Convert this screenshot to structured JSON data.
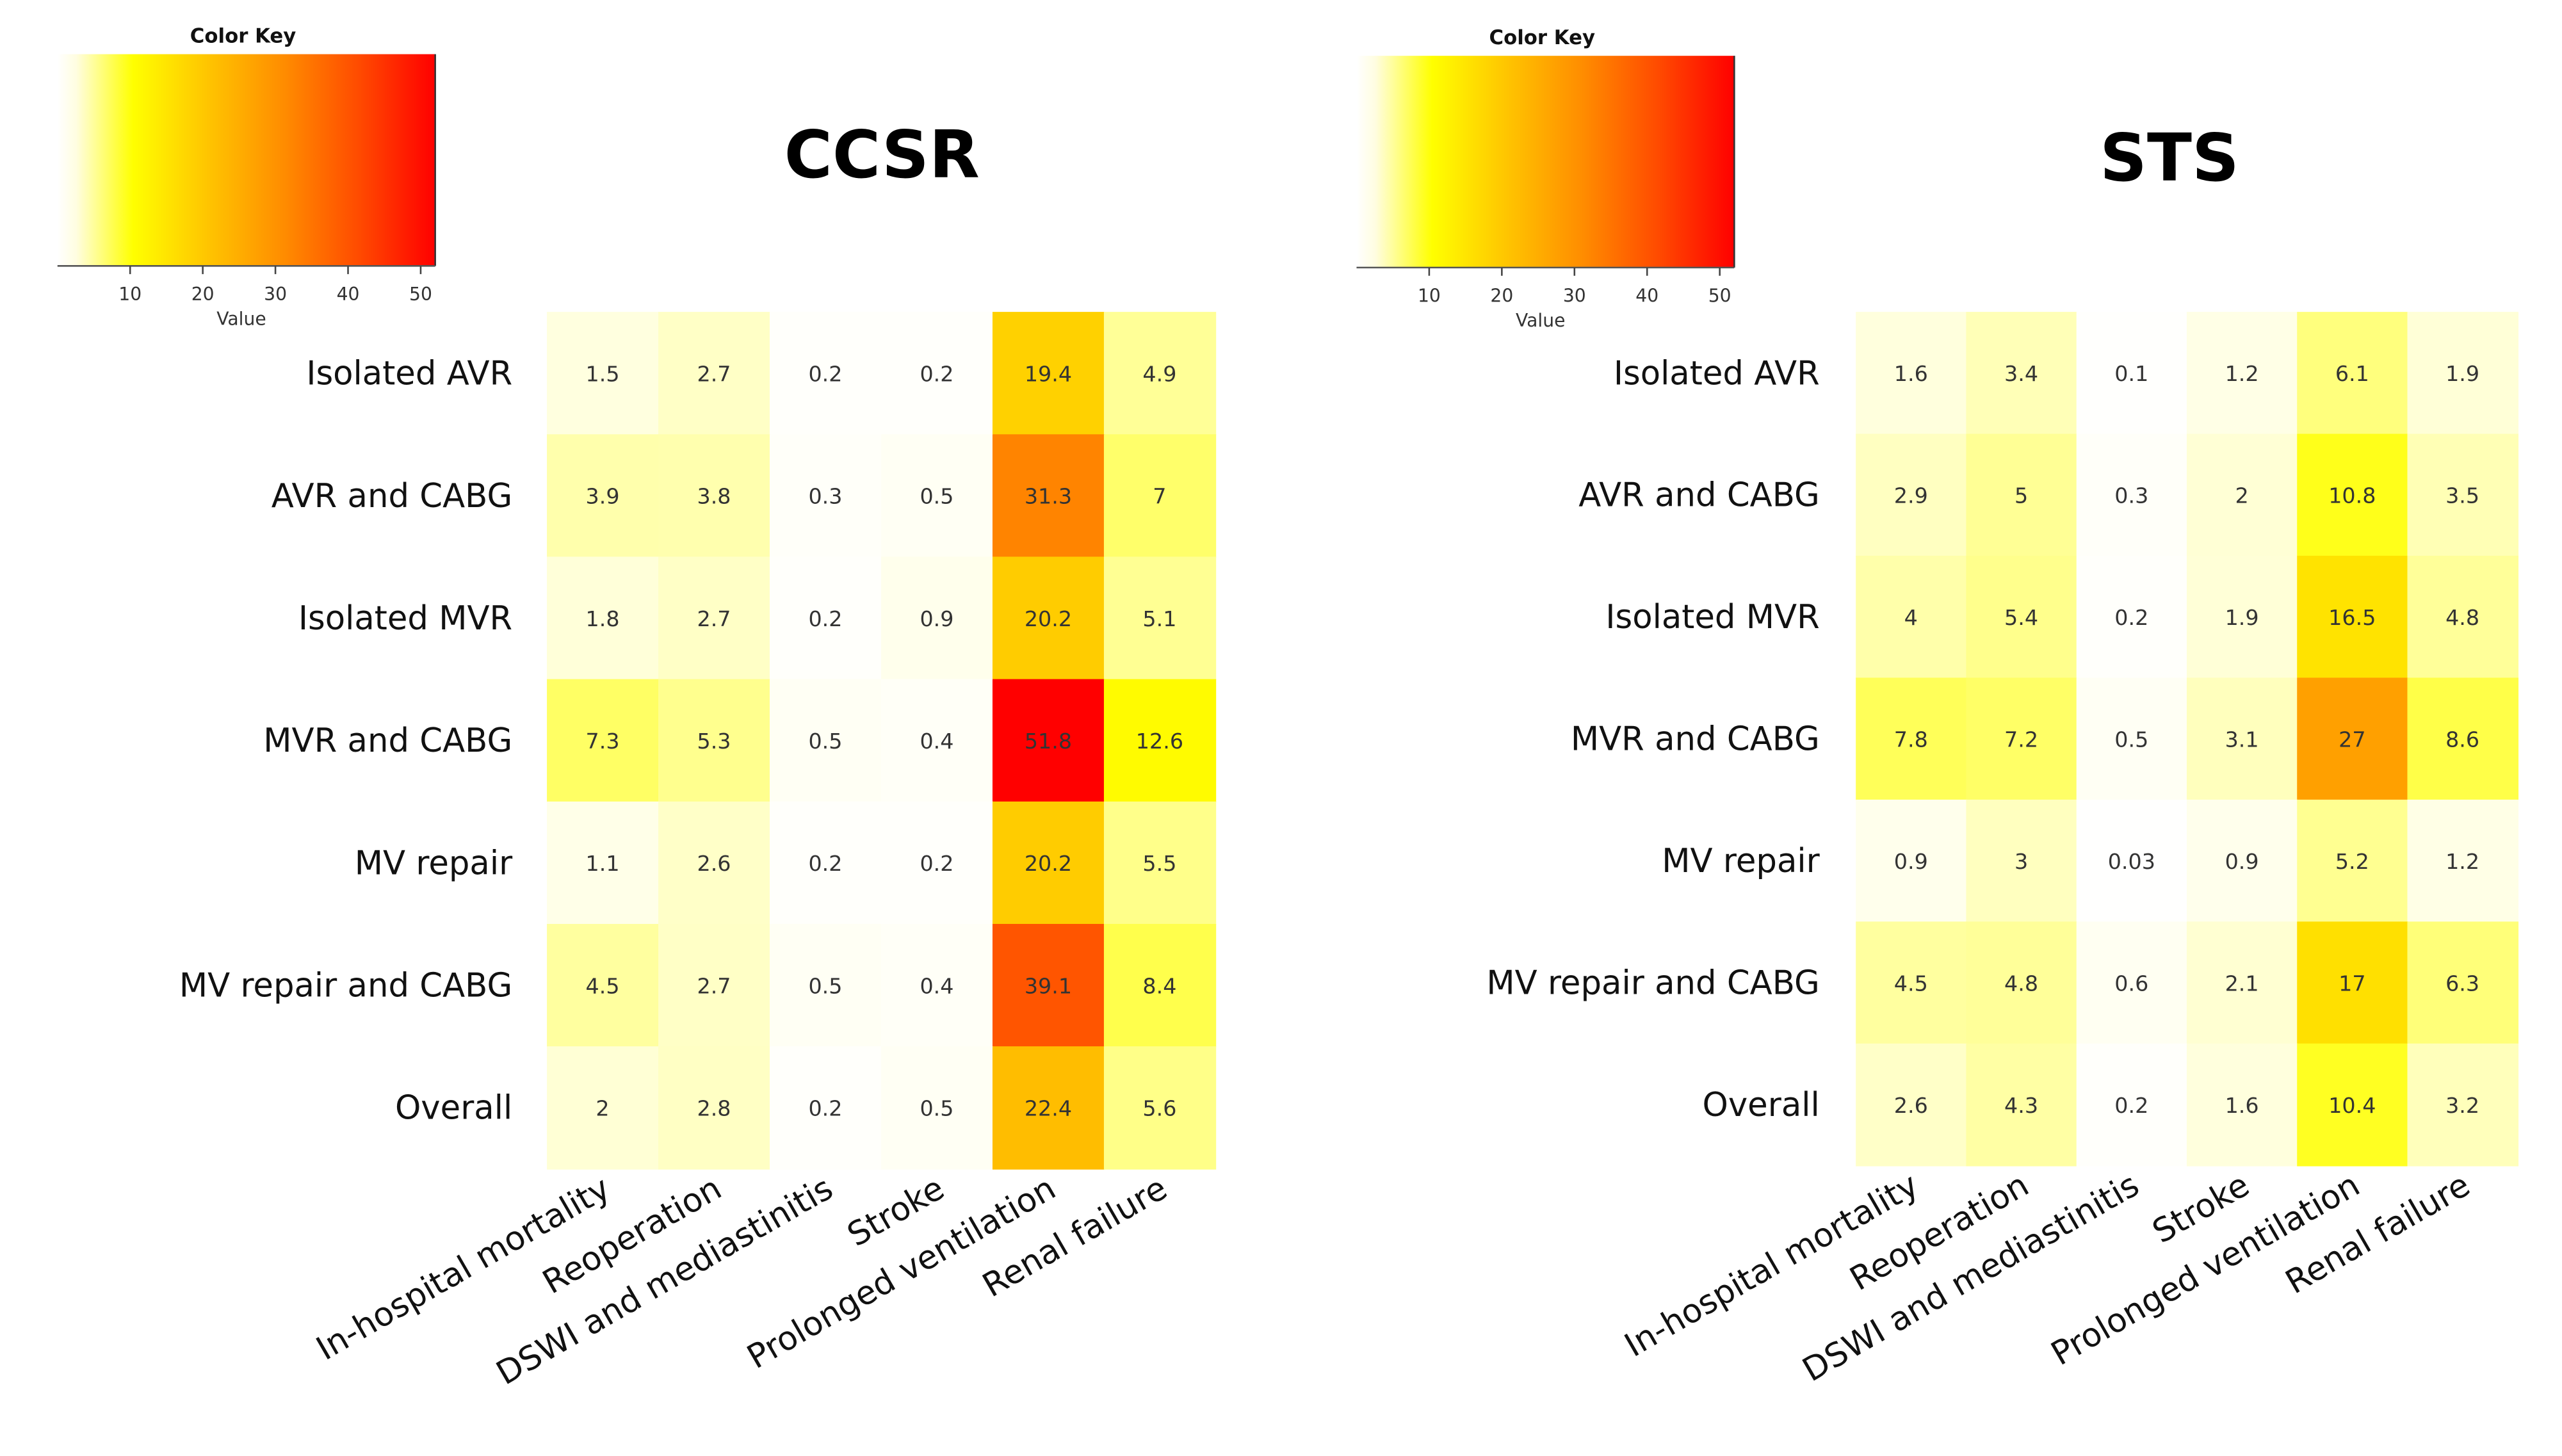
{
  "chart_data": [
    {
      "type": "heatmap",
      "title": "CCSR",
      "rows": [
        "Isolated AVR",
        "AVR and CABG",
        "Isolated MVR",
        "MVR and CABG",
        "MV repair",
        "MV repair and CABG",
        "Overall"
      ],
      "columns": [
        "In-hospital mortality",
        "Reoperation",
        "DSWI and mediastinitis",
        "Stroke",
        "Prolonged ventilation",
        "Renal failure"
      ],
      "values": [
        [
          1.5,
          2.7,
          0.2,
          0.2,
          19.4,
          4.9
        ],
        [
          3.9,
          3.8,
          0.3,
          0.5,
          31.3,
          7
        ],
        [
          1.8,
          2.7,
          0.2,
          0.9,
          20.2,
          5.1
        ],
        [
          7.3,
          5.3,
          0.5,
          0.4,
          51.8,
          12.6
        ],
        [
          1.1,
          2.6,
          0.2,
          0.2,
          20.2,
          5.5
        ],
        [
          4.5,
          2.7,
          0.5,
          0.4,
          39.1,
          8.4
        ],
        [
          2,
          2.8,
          0.2,
          0.5,
          22.4,
          5.6
        ]
      ],
      "color_key": {
        "title": "Color Key",
        "xlabel": "Value",
        "ticks": [
          10,
          20,
          30,
          40,
          50
        ],
        "range": [
          0,
          52
        ]
      }
    },
    {
      "type": "heatmap",
      "title": "STS",
      "rows": [
        "Isolated AVR",
        "AVR and CABG",
        "Isolated MVR",
        "MVR and CABG",
        "MV repair",
        "MV repair and CABG",
        "Overall"
      ],
      "columns": [
        "In-hospital mortality",
        "Reoperation",
        "DSWI and mediastinitis",
        "Stroke",
        "Prolonged ventilation",
        "Renal failure"
      ],
      "values": [
        [
          1.6,
          3.4,
          0.1,
          1.2,
          6.1,
          1.9
        ],
        [
          2.9,
          5,
          0.3,
          2,
          10.8,
          3.5
        ],
        [
          4,
          5.4,
          0.2,
          1.9,
          16.5,
          4.8
        ],
        [
          7.8,
          7.2,
          0.5,
          3.1,
          27,
          8.6
        ],
        [
          0.9,
          3,
          0.03,
          0.9,
          5.2,
          1.2
        ],
        [
          4.5,
          4.8,
          0.6,
          2.1,
          17,
          6.3
        ],
        [
          2.6,
          4.3,
          0.2,
          1.6,
          10.4,
          3.2
        ]
      ],
      "color_key": {
        "title": "Color Key",
        "xlabel": "Value",
        "ticks": [
          10,
          20,
          30,
          40,
          50
        ],
        "range": [
          0,
          52
        ]
      }
    }
  ],
  "colors": {
    "low": "#ffffff",
    "mid": "#ffff00",
    "high_mid": "#ff8c00",
    "high": "#ff0000"
  }
}
